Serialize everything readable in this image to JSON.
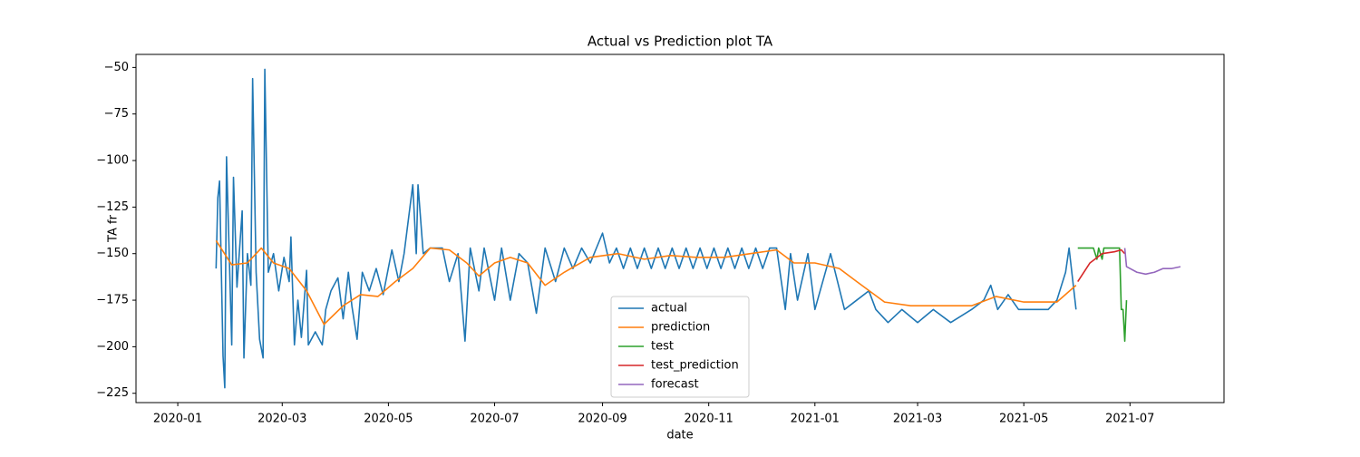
{
  "chart_data": {
    "type": "line",
    "title": "Actual vs Prediction plot TA",
    "xlabel": "date",
    "ylabel": "TA fr",
    "xlim": [
      "2019-12-08",
      "2021-08-24"
    ],
    "xticks": [
      "2020-01",
      "2020-03",
      "2020-05",
      "2020-07",
      "2020-09",
      "2020-11",
      "2021-01",
      "2021-03",
      "2021-05",
      "2021-07"
    ],
    "ylim": [
      -230,
      -43
    ],
    "yticks": [
      {
        "value": -225,
        "label": "−225"
      },
      {
        "value": -200,
        "label": "−200"
      },
      {
        "value": -175,
        "label": "−175"
      },
      {
        "value": -150,
        "label": "−150"
      },
      {
        "value": -125,
        "label": "−125"
      },
      {
        "value": -100,
        "label": "−100"
      },
      {
        "value": -75,
        "label": "−75"
      },
      {
        "value": -50,
        "label": "−50"
      }
    ],
    "grid": false,
    "legend": "lower center",
    "series": [
      {
        "name": "actual",
        "color": "#1f77b4",
        "x": [
          "2020-01-23",
          "2020-01-24",
          "2020-01-25",
          "2020-01-27",
          "2020-01-28",
          "2020-01-29",
          "2020-02-01",
          "2020-02-02",
          "2020-02-04",
          "2020-02-07",
          "2020-02-08",
          "2020-02-10",
          "2020-02-12",
          "2020-02-13",
          "2020-02-15",
          "2020-02-17",
          "2020-02-19",
          "2020-02-20",
          "2020-02-22",
          "2020-02-25",
          "2020-02-28",
          "2020-03-02",
          "2020-03-05",
          "2020-03-06",
          "2020-03-08",
          "2020-03-10",
          "2020-03-12",
          "2020-03-15",
          "2020-03-16",
          "2020-03-20",
          "2020-03-24",
          "2020-03-26",
          "2020-03-29",
          "2020-04-02",
          "2020-04-05",
          "2020-04-08",
          "2020-04-10",
          "2020-04-13",
          "2020-04-16",
          "2020-04-20",
          "2020-04-24",
          "2020-04-28",
          "2020-05-03",
          "2020-05-07",
          "2020-05-10",
          "2020-05-15",
          "2020-05-17",
          "2020-05-18",
          "2020-05-21",
          "2020-05-25",
          "2020-06-01",
          "2020-06-05",
          "2020-06-10",
          "2020-06-14",
          "2020-06-17",
          "2020-06-22",
          "2020-06-25",
          "2020-07-01",
          "2020-07-05",
          "2020-07-10",
          "2020-07-15",
          "2020-07-20",
          "2020-07-25",
          "2020-07-30",
          "2020-08-05",
          "2020-08-10",
          "2020-08-15",
          "2020-08-20",
          "2020-08-25",
          "2020-09-01",
          "2020-09-05",
          "2020-09-09",
          "2020-09-13",
          "2020-09-17",
          "2020-09-21",
          "2020-09-25",
          "2020-09-29",
          "2020-10-03",
          "2020-10-07",
          "2020-10-11",
          "2020-10-15",
          "2020-10-19",
          "2020-10-23",
          "2020-10-27",
          "2020-10-31",
          "2020-11-04",
          "2020-11-08",
          "2020-11-12",
          "2020-11-16",
          "2020-11-20",
          "2020-11-24",
          "2020-11-28",
          "2020-12-02",
          "2020-12-06",
          "2020-12-10",
          "2020-12-15",
          "2020-12-18",
          "2020-12-22",
          "2020-12-28",
          "2021-01-01",
          "2021-01-10",
          "2021-01-18",
          "2021-01-25",
          "2021-02-01",
          "2021-02-05",
          "2021-02-12",
          "2021-02-20",
          "2021-03-01",
          "2021-03-10",
          "2021-03-20",
          "2021-04-01",
          "2021-04-08",
          "2021-04-12",
          "2021-04-16",
          "2021-04-22",
          "2021-04-28",
          "2021-05-05",
          "2021-05-15",
          "2021-05-20",
          "2021-05-25",
          "2021-05-27",
          "2021-05-31"
        ],
        "values": [
          -158,
          -120,
          -111,
          -205,
          -222,
          -98,
          -199,
          -109,
          -168,
          -127,
          -206,
          -150,
          -167,
          -56,
          -160,
          -196,
          -206,
          -51,
          -160,
          -150,
          -170,
          -152,
          -165,
          -141,
          -199,
          -175,
          -195,
          -159,
          -199,
          -192,
          -199,
          -180,
          -170,
          -163,
          -185,
          -160,
          -178,
          -196,
          -160,
          -170,
          -158,
          -172,
          -148,
          -165,
          -150,
          -113,
          -150,
          -113,
          -150,
          -147,
          -147,
          -165,
          -150,
          -197,
          -147,
          -170,
          -147,
          -175,
          -147,
          -175,
          -150,
          -155,
          -182,
          -147,
          -165,
          -147,
          -158,
          -147,
          -155,
          -139,
          -155,
          -147,
          -158,
          -147,
          -158,
          -147,
          -158,
          -147,
          -158,
          -147,
          -158,
          -147,
          -158,
          -147,
          -158,
          -147,
          -158,
          -147,
          -158,
          -147,
          -158,
          -147,
          -158,
          -147,
          -147,
          -180,
          -150,
          -175,
          -150,
          -180,
          -150,
          -180,
          -175,
          -170,
          -180,
          -187,
          -180,
          -187,
          -180,
          -187,
          -180,
          -175,
          -167,
          -180,
          -172,
          -180,
          -180,
          -180,
          -175,
          -160,
          -147,
          -180
        ]
      },
      {
        "name": "prediction",
        "color": "#ff7f0e",
        "x": [
          "2020-01-23",
          "2020-02-01",
          "2020-02-10",
          "2020-02-18",
          "2020-02-25",
          "2020-03-05",
          "2020-03-15",
          "2020-03-25",
          "2020-04-05",
          "2020-04-15",
          "2020-04-25",
          "2020-05-05",
          "2020-05-15",
          "2020-05-25",
          "2020-06-05",
          "2020-06-15",
          "2020-06-22",
          "2020-07-01",
          "2020-07-10",
          "2020-07-20",
          "2020-07-30",
          "2020-08-10",
          "2020-08-25",
          "2020-09-10",
          "2020-09-25",
          "2020-10-10",
          "2020-10-25",
          "2020-11-10",
          "2020-11-25",
          "2020-12-10",
          "2020-12-20",
          "2021-01-01",
          "2021-01-15",
          "2021-01-25",
          "2021-02-10",
          "2021-02-25",
          "2021-03-15",
          "2021-04-01",
          "2021-04-15",
          "2021-05-01",
          "2021-05-20",
          "2021-05-31"
        ],
        "values": [
          -143,
          -156,
          -155,
          -147,
          -155,
          -158,
          -170,
          -188,
          -178,
          -172,
          -173,
          -165,
          -158,
          -147,
          -148,
          -155,
          -162,
          -155,
          -152,
          -155,
          -167,
          -160,
          -152,
          -150,
          -153,
          -151,
          -152,
          -152,
          -150,
          -148,
          -155,
          -155,
          -158,
          -165,
          -176,
          -178,
          -178,
          -178,
          -173,
          -176,
          -176,
          -167
        ]
      },
      {
        "name": "test",
        "color": "#2ca02c",
        "x": [
          "2021-06-01",
          "2021-06-10",
          "2021-06-12",
          "2021-06-13",
          "2021-06-15",
          "2021-06-16",
          "2021-06-25",
          "2021-06-26",
          "2021-06-27",
          "2021-06-28",
          "2021-06-29"
        ],
        "values": [
          -147,
          -147,
          -153,
          -147,
          -153,
          -147,
          -147,
          -180,
          -180,
          -197,
          -175
        ]
      },
      {
        "name": "test_prediction",
        "color": "#d62728",
        "x": [
          "2021-06-01",
          "2021-06-08",
          "2021-06-15",
          "2021-06-22",
          "2021-06-26",
          "2021-06-28"
        ],
        "values": [
          -165,
          -155,
          -150,
          -149,
          -148,
          -150
        ]
      },
      {
        "name": "forecast",
        "color": "#9467bd",
        "x": [
          "2021-06-28",
          "2021-06-29",
          "2021-07-05",
          "2021-07-10",
          "2021-07-15",
          "2021-07-20",
          "2021-07-25",
          "2021-07-30"
        ],
        "values": [
          -147,
          -157,
          -160,
          -161,
          -160,
          -158,
          -158,
          -157
        ]
      }
    ]
  }
}
